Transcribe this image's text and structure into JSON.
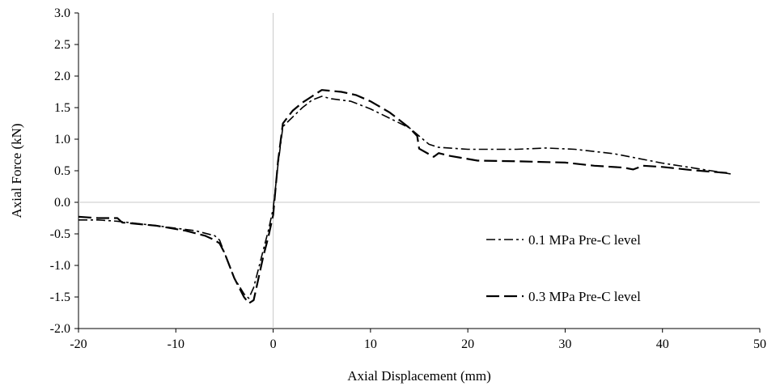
{
  "chart_data": {
    "type": "line",
    "title": "",
    "xlabel": "Axial Displacement (mm)",
    "ylabel": "Axial Force (kN)",
    "xlim": [
      -20,
      50
    ],
    "ylim": [
      -2.0,
      3.0
    ],
    "x_ticks": [
      "-20",
      "-10",
      "0",
      "10",
      "20",
      "30",
      "40",
      "50"
    ],
    "y_ticks": [
      "3.0",
      "2.5",
      "2.0",
      "1.5",
      "1.0",
      "0.5",
      "0.0",
      "-0.5",
      "-1.0",
      "-1.5",
      "-2.0"
    ],
    "grid": false,
    "legend_position": "right",
    "series": [
      {
        "name": "0.1 MPa Pre-C level",
        "line_style": "dash-dot",
        "color": "#000000",
        "points": [
          [
            -20,
            -0.28
          ],
          [
            -18,
            -0.28
          ],
          [
            -16,
            -0.3
          ],
          [
            -12,
            -0.37
          ],
          [
            -8,
            -0.45
          ],
          [
            -6,
            -0.53
          ],
          [
            -5.5,
            -0.6
          ],
          [
            -5,
            -0.8
          ],
          [
            -4,
            -1.2
          ],
          [
            -3,
            -1.45
          ],
          [
            -2.5,
            -1.52
          ],
          [
            -2,
            -1.35
          ],
          [
            -1.5,
            -1.05
          ],
          [
            -1,
            -0.75
          ],
          [
            -0.5,
            -0.45
          ],
          [
            0,
            -0.1
          ],
          [
            0.5,
            0.6
          ],
          [
            1,
            1.2
          ],
          [
            2,
            1.35
          ],
          [
            3,
            1.5
          ],
          [
            4,
            1.62
          ],
          [
            5,
            1.68
          ],
          [
            6,
            1.64
          ],
          [
            8,
            1.6
          ],
          [
            10,
            1.48
          ],
          [
            12,
            1.33
          ],
          [
            14,
            1.18
          ],
          [
            15,
            1.05
          ],
          [
            16,
            0.92
          ],
          [
            17,
            0.87
          ],
          [
            20,
            0.84
          ],
          [
            25,
            0.84
          ],
          [
            28,
            0.86
          ],
          [
            31,
            0.84
          ],
          [
            35,
            0.77
          ],
          [
            40,
            0.62
          ],
          [
            45,
            0.5
          ],
          [
            47,
            0.45
          ]
        ]
      },
      {
        "name": "0.3 MPa Pre-C level",
        "line_style": "dashed",
        "color": "#000000",
        "points": [
          [
            -20,
            -0.23
          ],
          [
            -18,
            -0.25
          ],
          [
            -16,
            -0.25
          ],
          [
            -15.5,
            -0.32
          ],
          [
            -12,
            -0.37
          ],
          [
            -9,
            -0.45
          ],
          [
            -7,
            -0.53
          ],
          [
            -6,
            -0.6
          ],
          [
            -5.5,
            -0.65
          ],
          [
            -5,
            -0.8
          ],
          [
            -4,
            -1.2
          ],
          [
            -3,
            -1.5
          ],
          [
            -2.5,
            -1.6
          ],
          [
            -2,
            -1.55
          ],
          [
            -1.5,
            -1.2
          ],
          [
            -1,
            -0.85
          ],
          [
            -0.5,
            -0.55
          ],
          [
            0,
            -0.2
          ],
          [
            0.5,
            0.65
          ],
          [
            1,
            1.25
          ],
          [
            2,
            1.45
          ],
          [
            3,
            1.58
          ],
          [
            4,
            1.68
          ],
          [
            5,
            1.78
          ],
          [
            7,
            1.75
          ],
          [
            8.5,
            1.7
          ],
          [
            10,
            1.6
          ],
          [
            12,
            1.42
          ],
          [
            14,
            1.18
          ],
          [
            14.8,
            1.05
          ],
          [
            15,
            0.85
          ],
          [
            16.5,
            0.72
          ],
          [
            17,
            0.78
          ],
          [
            18,
            0.74
          ],
          [
            21,
            0.66
          ],
          [
            25,
            0.65
          ],
          [
            30,
            0.63
          ],
          [
            33,
            0.58
          ],
          [
            36,
            0.55
          ],
          [
            37,
            0.52
          ],
          [
            38,
            0.58
          ],
          [
            40,
            0.56
          ],
          [
            43,
            0.51
          ],
          [
            47,
            0.46
          ]
        ]
      }
    ]
  }
}
